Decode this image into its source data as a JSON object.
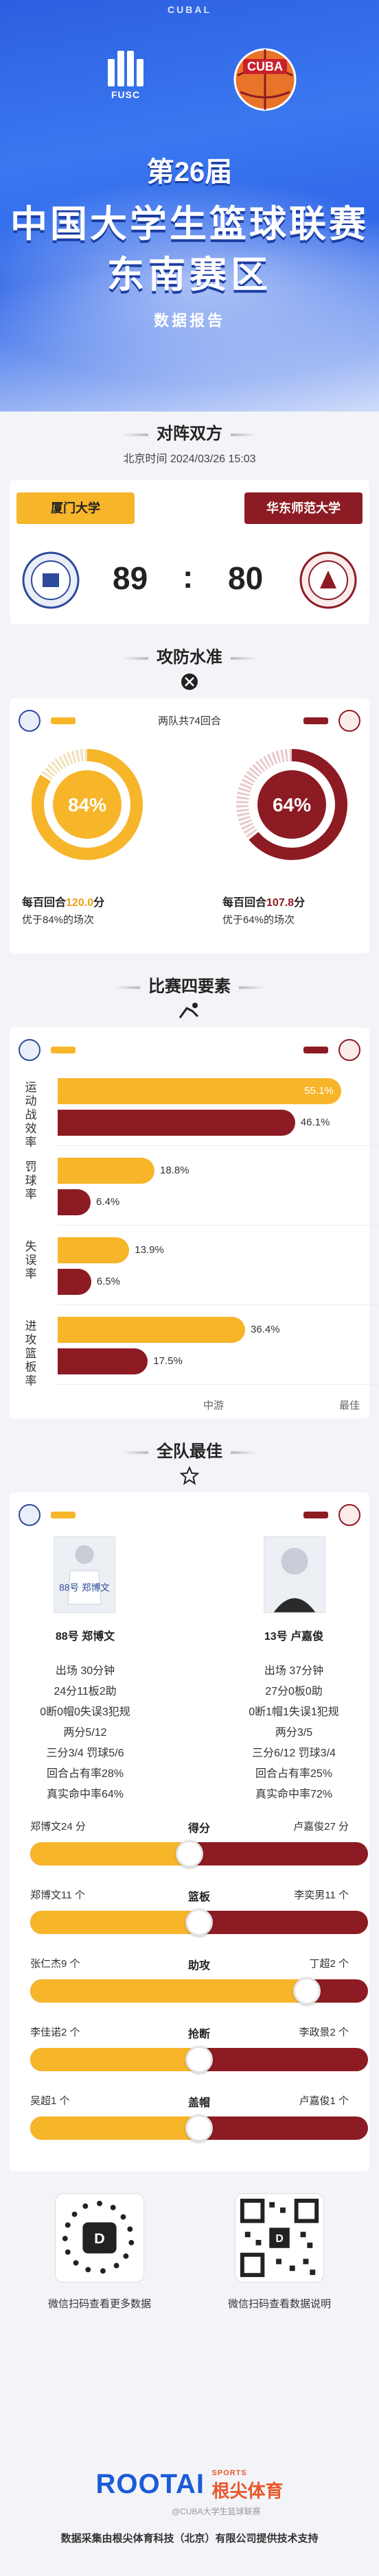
{
  "header": {
    "tag": "CUBAL",
    "fusc_label": "FUSC",
    "edition": "第26届",
    "title_line1": "中国大学生篮球联赛",
    "title_line2": "东南赛区",
    "subtitle": "数据报告",
    "cuba_label": "CUBA"
  },
  "matchup": {
    "section_title": "对阵双方",
    "datetime": "北京时间 2024/03/26 15:03",
    "team_a": "厦门大学",
    "team_b": "华东师范大学",
    "score_a": "89",
    "score_sep": ":",
    "score_b": "80"
  },
  "offense_defense": {
    "section_title": "攻防水准",
    "possessions": "两队共74回合",
    "team_a": {
      "pct": "84%",
      "per100_prefix": "每百回合",
      "per100_value": "120.0",
      "per100_suffix": "分",
      "better": "优于84%的场次",
      "ring_fraction": 0.84
    },
    "team_b": {
      "pct": "64%",
      "per100_prefix": "每百回合",
      "per100_value": "107.8",
      "per100_suffix": "分",
      "better": "优于64%的场次",
      "ring_fraction": 0.64
    }
  },
  "four_factors": {
    "section_title": "比赛四要素",
    "factors": [
      {
        "label": "运动战效率",
        "a": 55.1,
        "a_text": "55.1%",
        "b": 46.1,
        "b_text": "46.1%"
      },
      {
        "label": "罚球率",
        "a": 18.8,
        "a_text": "18.8%",
        "b": 6.4,
        "b_text": "6.4%"
      },
      {
        "label": "失误率",
        "a": 13.9,
        "a_text": "13.9%",
        "b": 6.5,
        "b_text": "6.5%"
      },
      {
        "label": "进攻篮板率",
        "a": 36.4,
        "a_text": "36.4%",
        "b": 17.5,
        "b_text": "17.5%"
      }
    ],
    "axis_mid": "中游",
    "axis_best": "最佳"
  },
  "best_players": {
    "section_title": "全队最佳",
    "player_a": {
      "name": "88号 郑博文",
      "lines": [
        "出场 30分钟",
        "24分11板2助",
        "0断0帽0失误3犯规",
        "两分5/12",
        "三分3/4 罚球5/6",
        "回合占有率28%",
        "真实命中率64%"
      ]
    },
    "player_b": {
      "name": "13号 卢嘉俊",
      "lines": [
        "出场 37分钟",
        "27分0板0助",
        "0断1帽1失误1犯规",
        "两分3/5",
        "三分6/12 罚球3/4",
        "回合占有率25%",
        "真实命中率72%"
      ]
    }
  },
  "comparisons": [
    {
      "category": "得分",
      "left": "郑博文24 分",
      "right": "卢嘉俊27 分",
      "left_value": 24,
      "right_value": 27
    },
    {
      "category": "篮板",
      "left": "郑博文11 个",
      "right": "李奕男11 个",
      "left_value": 11,
      "right_value": 11
    },
    {
      "category": "助攻",
      "left": "张仁杰9 个",
      "right": "丁超2 个",
      "left_value": 9,
      "right_value": 2
    },
    {
      "category": "抢断",
      "left": "李佳诺2 个",
      "right": "李政景2 个",
      "left_value": 2,
      "right_value": 2
    },
    {
      "category": "盖帽",
      "left": "吴超1 个",
      "right": "卢嘉俊1 个",
      "left_value": 1,
      "right_value": 1
    }
  ],
  "footer": {
    "qr_left_caption": "微信扫码查看更多数据",
    "qr_right_caption": "微信扫码查看数据说明",
    "brand": "ROOTAI",
    "brand_cn": "根尖体育",
    "brand_sports": "SPORTS",
    "note": "数据采集由根尖体育科技（北京）有限公司提供技术支持",
    "watermark": "@CUBA大学生篮球联赛"
  },
  "colors": {
    "team_a": "#f7b52a",
    "team_b": "#8d1b23",
    "hero": "#2f66e8"
  }
}
